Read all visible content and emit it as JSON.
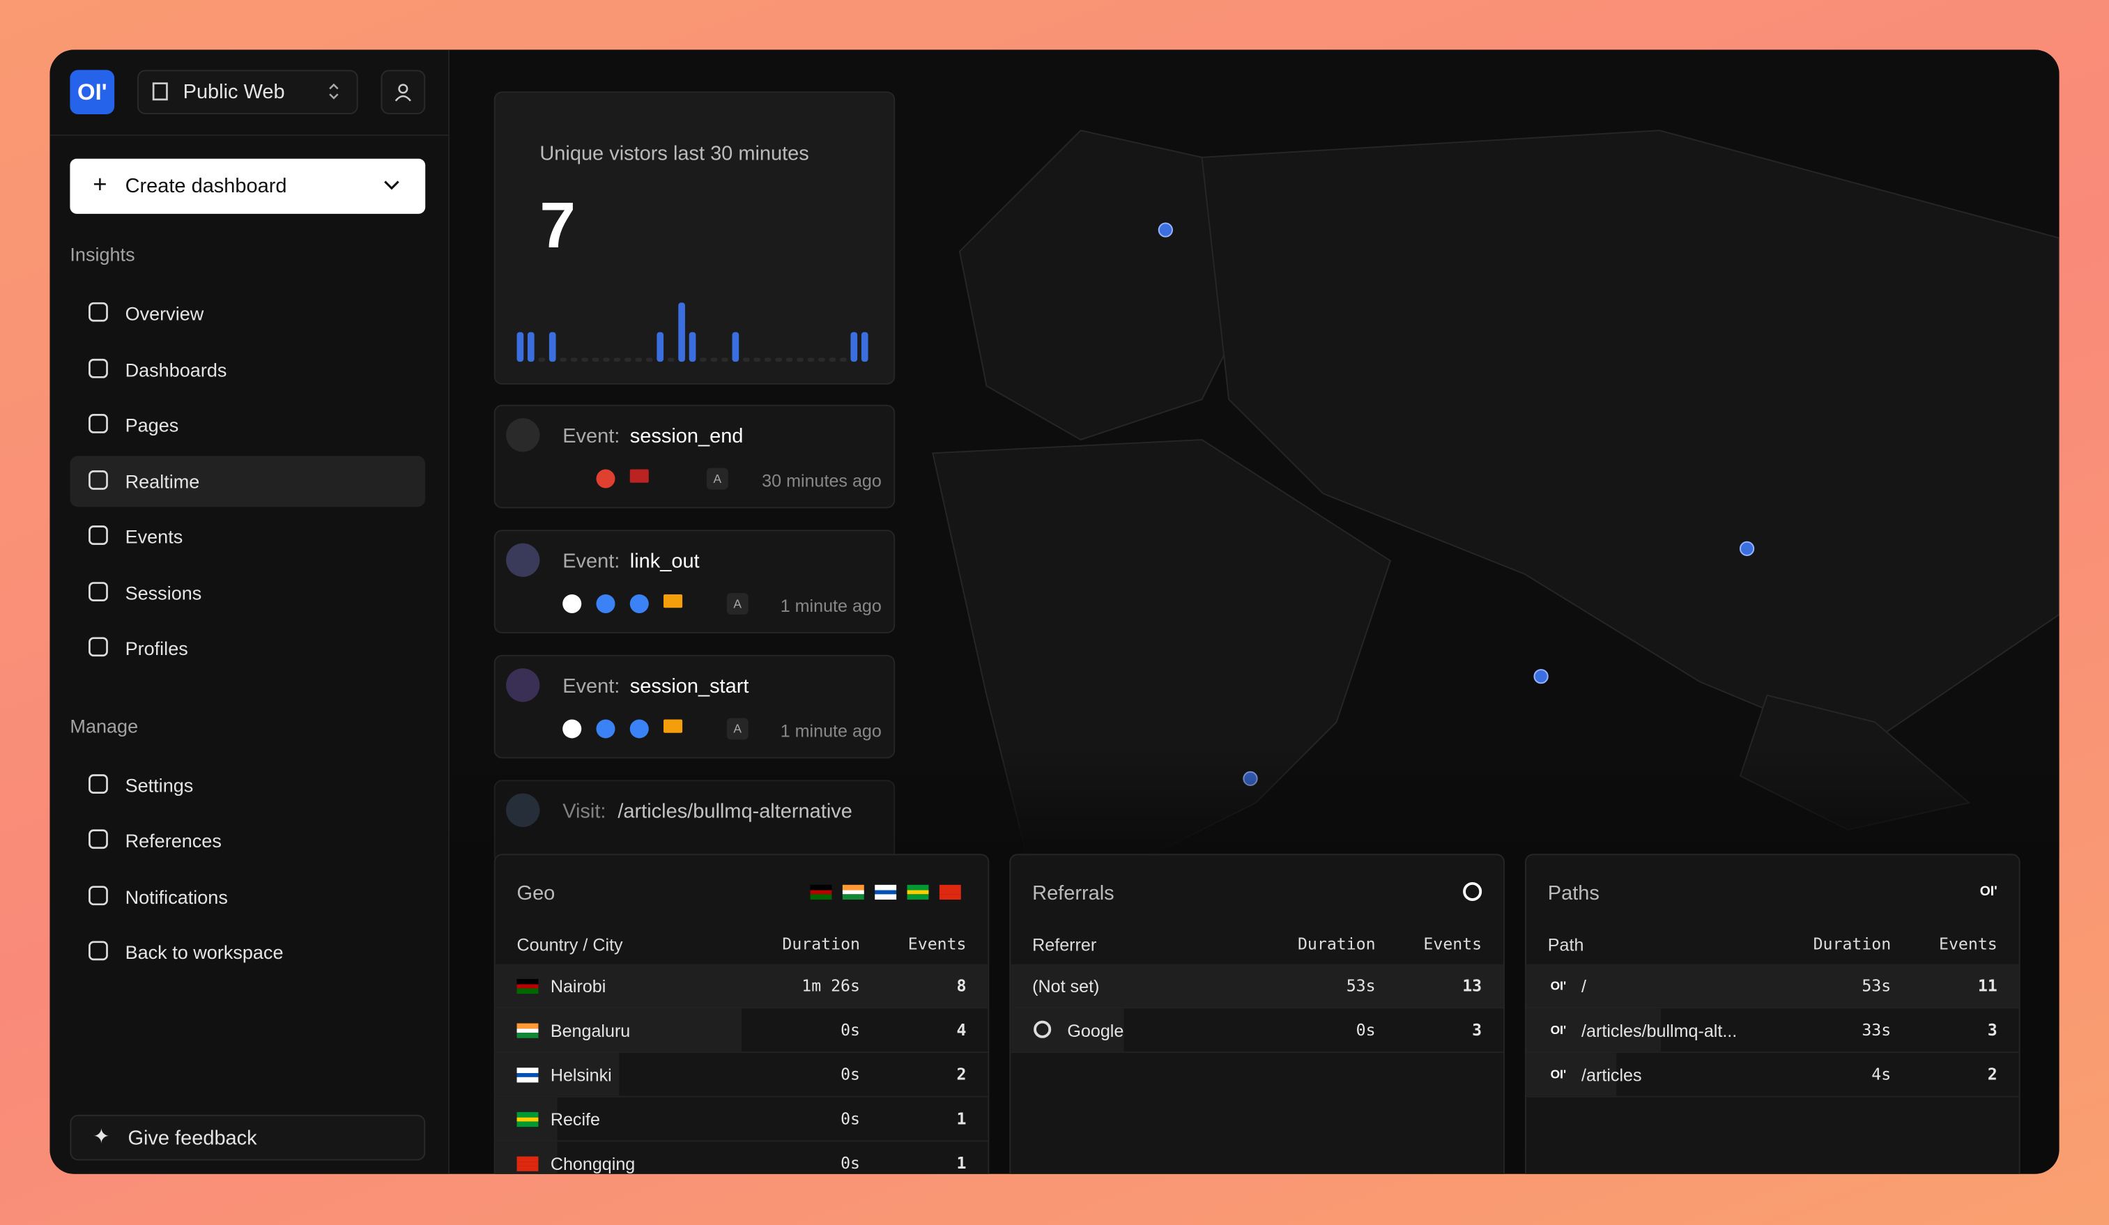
{
  "sidebar": {
    "logo": "OI'",
    "project": "Public Web",
    "create_button": "Create dashboard",
    "sections": [
      {
        "title": "Insights",
        "items": [
          "Overview",
          "Dashboards",
          "Pages",
          "Realtime",
          "Events",
          "Sessions",
          "Profiles"
        ]
      },
      {
        "title": "Manage",
        "items": [
          "Settings",
          "References",
          "Notifications",
          "Back to workspace"
        ]
      }
    ],
    "active": "Realtime",
    "feedback": "Give feedback"
  },
  "visitors": {
    "title": "Unique vistors last 30 minutes",
    "count": 7,
    "bars": [
      1,
      1,
      0,
      1,
      0,
      0,
      0,
      0,
      0,
      0,
      0,
      0,
      0,
      1,
      0,
      2,
      1,
      0,
      0,
      0,
      1,
      0,
      0,
      0,
      0,
      0,
      0,
      0,
      0,
      0,
      0,
      1,
      1
    ]
  },
  "events": [
    {
      "label": "Event:",
      "name": "session_end",
      "badge": "A",
      "time": "30 minutes ago"
    },
    {
      "label": "Event:",
      "name": "link_out",
      "badge": "A",
      "time": "1 minute ago"
    },
    {
      "label": "Event:",
      "name": "session_start",
      "badge": "A",
      "time": "1 minute ago"
    },
    {
      "label": "Visit:",
      "name": "/articles/bullmq-alternative"
    }
  ],
  "tables": [
    {
      "title": "Geo",
      "columns": [
        "Country / City",
        "Duration",
        "Events"
      ],
      "rows": [
        [
          "Nairobi",
          "1m 26s",
          8
        ],
        [
          "Bengaluru",
          "0s",
          4
        ],
        [
          "Helsinki",
          "0s",
          2
        ],
        [
          "Recife",
          "0s",
          1
        ],
        [
          "Chongqing",
          "0s",
          1
        ]
      ]
    },
    {
      "title": "Referrals",
      "columns": [
        "Referrer",
        "Duration",
        "Events"
      ],
      "rows": [
        [
          "(Not set)",
          "53s",
          13
        ],
        [
          "Google",
          "0s",
          3
        ]
      ]
    },
    {
      "title": "Paths",
      "columns": [
        "Path",
        "Duration",
        "Events"
      ],
      "rows": [
        [
          "/",
          "53s",
          11
        ],
        [
          "/articles/bullmq-alt...",
          "33s",
          3
        ],
        [
          "/articles",
          "4s",
          2
        ]
      ]
    }
  ]
}
